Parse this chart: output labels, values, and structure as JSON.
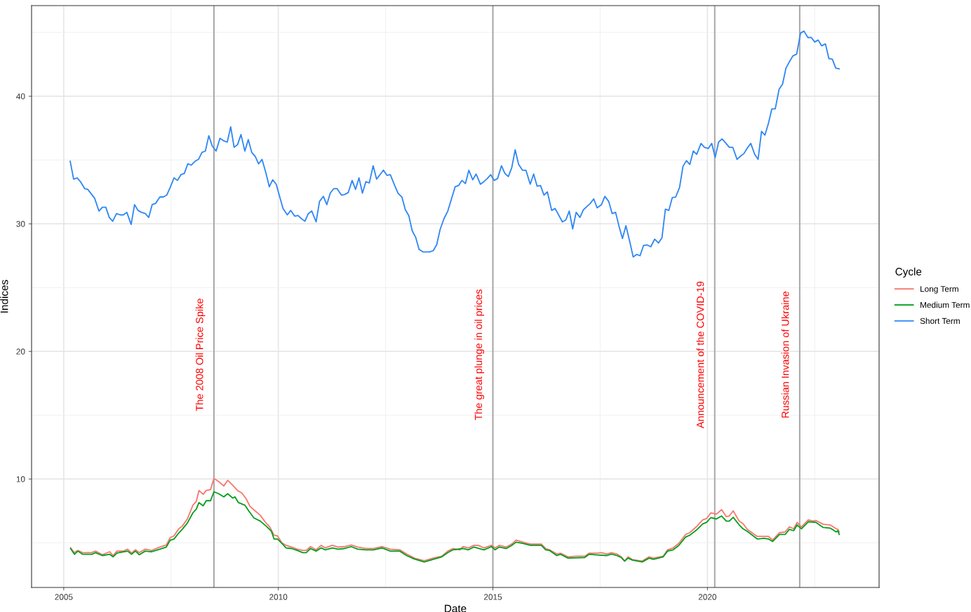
{
  "chart_data": {
    "type": "line",
    "xlabel": "Date",
    "ylabel": "Indices",
    "legend_title": "Cycle",
    "legend": "right",
    "grid": true,
    "xlim": [
      2004.25,
      2024.0
    ],
    "xticks": [
      2005,
      2010,
      2015,
      2020
    ],
    "ylim": [
      1.5,
      47.1
    ],
    "yticks": [
      10,
      20,
      30,
      40
    ],
    "ref_lines": [
      {
        "axis": "x",
        "value": 2008.5,
        "label": "The 2008 Oil Price Spike",
        "color": "#a6a6a6"
      },
      {
        "axis": "x",
        "value": 2015.0,
        "label": "The great plunge in oil prices",
        "color": "#a6a6a6"
      },
      {
        "axis": "x",
        "value": 2020.17,
        "label": "Announcement of the COVID-19",
        "color": "#a6a6a6"
      },
      {
        "axis": "x",
        "value": 2022.15,
        "label": "Russian Invasion of Ukraine",
        "color": "#a6a6a6"
      }
    ],
    "series": [
      {
        "name": "Long Term",
        "color": "#F8766D",
        "x": [
          2005.16,
          2005.24,
          2005.33,
          2005.44,
          2005.64,
          2005.74,
          2005.9,
          2006.07,
          2006.15,
          2006.24,
          2006.39,
          2006.49,
          2006.58,
          2006.67,
          2006.76,
          2006.9,
          2007.04,
          2007.24,
          2007.39,
          2007.48,
          2007.57,
          2007.68,
          2007.76,
          2007.88,
          2008.01,
          2008.09,
          2008.15,
          2008.25,
          2008.32,
          2008.42,
          2008.5,
          2008.61,
          2008.73,
          2008.82,
          2008.94,
          2009.05,
          2009.15,
          2009.25,
          2009.34,
          2009.46,
          2009.58,
          2009.69,
          2009.8,
          2009.9,
          2009.98,
          2010.08,
          2010.18,
          2010.31,
          2010.44,
          2010.57,
          2010.65,
          2010.75,
          2010.88,
          2011.0,
          2011.09,
          2011.26,
          2011.39,
          2011.54,
          2011.7,
          2011.85,
          2012.04,
          2012.22,
          2012.42,
          2012.61,
          2012.83,
          2012.99,
          2013.17,
          2013.4,
          2013.61,
          2013.81,
          2013.95,
          2014.07,
          2014.23,
          2014.3,
          2014.43,
          2014.56,
          2014.66,
          2014.79,
          2014.97,
          2015.05,
          2015.15,
          2015.31,
          2015.44,
          2015.54,
          2015.7,
          2015.87,
          2016.03,
          2016.13,
          2016.23,
          2016.32,
          2016.49,
          2016.58,
          2016.75,
          2016.94,
          2017.14,
          2017.24,
          2017.43,
          2017.53,
          2017.66,
          2017.76,
          2017.89,
          2017.99,
          2018.07,
          2018.15,
          2018.25,
          2018.48,
          2018.64,
          2018.74,
          2018.97,
          2019.07,
          2019.2,
          2019.33,
          2019.49,
          2019.59,
          2019.74,
          2019.89,
          2019.98,
          2020.08,
          2020.21,
          2020.33,
          2020.44,
          2020.51,
          2020.6,
          2020.74,
          2020.83,
          2020.93,
          2021.16,
          2021.32,
          2021.42,
          2021.52,
          2021.68,
          2021.81,
          2021.91,
          2022.01,
          2022.09,
          2022.19,
          2022.35,
          2022.47,
          2022.53,
          2022.7,
          2022.86,
          2023.0,
          2023.04,
          2023.07
        ],
        "values": [
          4.6,
          4.23,
          4.4,
          4.23,
          4.23,
          4.35,
          4.07,
          4.3,
          4.0,
          4.35,
          4.35,
          4.5,
          4.2,
          4.45,
          4.23,
          4.5,
          4.4,
          4.67,
          4.83,
          5.4,
          5.55,
          6.1,
          6.3,
          6.87,
          7.95,
          8.25,
          9.1,
          8.8,
          9.1,
          9.17,
          10.05,
          9.8,
          9.45,
          9.9,
          9.5,
          9.1,
          8.9,
          8.45,
          7.85,
          7.5,
          7.15,
          6.65,
          6.25,
          5.6,
          5.55,
          5.0,
          4.8,
          4.67,
          4.5,
          4.4,
          4.4,
          4.7,
          4.45,
          4.8,
          4.6,
          4.8,
          4.67,
          4.7,
          4.83,
          4.67,
          4.55,
          4.55,
          4.7,
          4.5,
          4.45,
          4.12,
          3.8,
          3.6,
          3.8,
          3.95,
          4.35,
          4.55,
          4.45,
          4.7,
          4.6,
          4.8,
          4.8,
          4.6,
          4.8,
          4.6,
          4.8,
          4.67,
          4.9,
          5.22,
          5.05,
          4.9,
          4.9,
          4.9,
          4.55,
          4.45,
          4.12,
          4.18,
          3.9,
          3.95,
          3.95,
          4.18,
          4.18,
          4.23,
          4.12,
          4.23,
          4.12,
          3.9,
          3.57,
          3.9,
          3.68,
          3.57,
          3.9,
          3.8,
          3.95,
          4.45,
          4.6,
          4.95,
          5.65,
          5.8,
          6.25,
          6.8,
          6.9,
          7.35,
          7.25,
          7.6,
          7.05,
          7.1,
          7.5,
          6.7,
          6.5,
          6.05,
          5.5,
          5.5,
          5.5,
          5.22,
          5.8,
          5.85,
          6.25,
          6.1,
          6.6,
          6.25,
          6.8,
          6.7,
          6.75,
          6.45,
          6.4,
          6.1,
          6.05,
          5.85
        ]
      },
      {
        "name": "Medium Term",
        "color": "#009E1A",
        "x": [
          2005.16,
          2005.25,
          2005.33,
          2005.44,
          2005.66,
          2005.74,
          2005.9,
          2006.07,
          2006.15,
          2006.24,
          2006.49,
          2006.58,
          2006.67,
          2006.76,
          2006.9,
          2007.04,
          2007.24,
          2007.39,
          2007.48,
          2007.57,
          2007.68,
          2007.76,
          2007.88,
          2008.01,
          2008.09,
          2008.15,
          2008.25,
          2008.32,
          2008.42,
          2008.5,
          2008.61,
          2008.73,
          2008.82,
          2008.94,
          2008.99,
          2009.07,
          2009.22,
          2009.31,
          2009.43,
          2009.58,
          2009.72,
          2009.84,
          2009.9,
          2009.98,
          2010.1,
          2010.18,
          2010.31,
          2010.44,
          2010.57,
          2010.65,
          2010.75,
          2010.88,
          2011.0,
          2011.09,
          2011.26,
          2011.39,
          2011.54,
          2011.7,
          2011.85,
          2012.04,
          2012.22,
          2012.42,
          2012.61,
          2012.83,
          2012.99,
          2013.17,
          2013.4,
          2013.61,
          2013.81,
          2013.95,
          2014.07,
          2014.3,
          2014.43,
          2014.56,
          2014.79,
          2014.97,
          2015.05,
          2015.15,
          2015.31,
          2015.44,
          2015.54,
          2015.7,
          2015.87,
          2016.13,
          2016.23,
          2016.32,
          2016.49,
          2016.58,
          2016.75,
          2017.14,
          2017.24,
          2017.43,
          2017.66,
          2017.76,
          2017.89,
          2017.99,
          2018.07,
          2018.15,
          2018.25,
          2018.48,
          2018.64,
          2018.74,
          2018.97,
          2019.07,
          2019.2,
          2019.33,
          2019.49,
          2019.59,
          2019.74,
          2019.89,
          2019.98,
          2020.08,
          2020.21,
          2020.33,
          2020.44,
          2020.51,
          2020.6,
          2020.74,
          2020.83,
          2020.93,
          2021.16,
          2021.32,
          2021.42,
          2021.52,
          2021.68,
          2021.81,
          2021.91,
          2022.01,
          2022.09,
          2022.19,
          2022.35,
          2022.53,
          2022.7,
          2022.86,
          2023.0,
          2023.04,
          2023.07
        ],
        "values": [
          4.55,
          4.1,
          4.35,
          4.1,
          4.1,
          4.23,
          4.0,
          4.1,
          3.9,
          4.2,
          4.35,
          4.1,
          4.35,
          4.07,
          4.35,
          4.3,
          4.5,
          4.67,
          5.2,
          5.3,
          5.77,
          6.05,
          6.55,
          7.35,
          7.65,
          8.15,
          7.9,
          8.3,
          8.3,
          9.0,
          8.85,
          8.6,
          8.85,
          8.5,
          8.6,
          8.15,
          7.95,
          7.5,
          6.95,
          6.7,
          6.3,
          5.9,
          5.3,
          5.3,
          4.9,
          4.6,
          4.55,
          4.4,
          4.23,
          4.23,
          4.55,
          4.35,
          4.6,
          4.45,
          4.6,
          4.5,
          4.55,
          4.7,
          4.5,
          4.45,
          4.45,
          4.6,
          4.35,
          4.35,
          4.0,
          3.73,
          3.5,
          3.7,
          3.9,
          4.23,
          4.45,
          4.55,
          4.45,
          4.67,
          4.45,
          4.7,
          4.45,
          4.67,
          4.55,
          4.8,
          5.05,
          4.95,
          4.8,
          4.8,
          4.45,
          4.4,
          4.0,
          4.1,
          3.8,
          3.85,
          4.1,
          4.05,
          4.0,
          4.12,
          4.0,
          3.85,
          3.57,
          3.8,
          3.65,
          3.5,
          3.8,
          3.7,
          3.9,
          4.35,
          4.45,
          4.78,
          5.45,
          5.6,
          5.99,
          6.48,
          6.6,
          6.98,
          6.87,
          7.1,
          6.7,
          6.7,
          7.0,
          6.4,
          6.1,
          5.9,
          5.3,
          5.35,
          5.3,
          5.1,
          5.65,
          5.65,
          6.05,
          5.95,
          6.4,
          6.1,
          6.65,
          6.6,
          6.2,
          6.15,
          5.85,
          5.95,
          5.65
        ]
      },
      {
        "name": "Short Term",
        "color": "#2E86F5",
        "x": [
          2005.15,
          2005.23,
          2005.31,
          2005.39,
          2005.49,
          2005.56,
          2005.72,
          2005.82,
          2005.9,
          2005.98,
          2006.06,
          2006.14,
          2006.23,
          2006.31,
          2006.39,
          2006.47,
          2006.57,
          2006.65,
          2006.73,
          2006.81,
          2006.9,
          2006.98,
          2007.06,
          2007.14,
          2007.24,
          2007.32,
          2007.4,
          2007.48,
          2007.57,
          2007.65,
          2007.73,
          2007.81,
          2007.89,
          2007.97,
          2008.06,
          2008.14,
          2008.22,
          2008.3,
          2008.38,
          2008.46,
          2008.55,
          2008.64,
          2008.73,
          2008.81,
          2008.89,
          2008.97,
          2009.05,
          2009.13,
          2009.22,
          2009.3,
          2009.38,
          2009.46,
          2009.54,
          2009.62,
          2009.71,
          2009.79,
          2009.87,
          2009.95,
          2010.11,
          2010.21,
          2010.29,
          2010.38,
          2010.46,
          2010.54,
          2010.62,
          2010.7,
          2010.78,
          2010.88,
          2010.96,
          2011.05,
          2011.13,
          2011.21,
          2011.29,
          2011.37,
          2011.47,
          2011.55,
          2011.63,
          2011.72,
          2011.8,
          2011.88,
          2011.96,
          2012.04,
          2012.12,
          2012.21,
          2012.29,
          2012.45,
          2012.53,
          2012.61,
          2012.7,
          2012.79,
          2012.88,
          2012.96,
          2013.04,
          2013.12,
          2013.2,
          2013.28,
          2013.37,
          2013.53,
          2013.61,
          2013.69,
          2013.77,
          2013.86,
          2013.95,
          2014.04,
          2014.12,
          2014.2,
          2014.28,
          2014.36,
          2014.44,
          2014.53,
          2014.61,
          2014.71,
          2014.79,
          2014.87,
          2014.95,
          2015.03,
          2015.11,
          2015.2,
          2015.28,
          2015.36,
          2015.44,
          2015.52,
          2015.6,
          2015.69,
          2015.77,
          2015.87,
          2015.95,
          2016.03,
          2016.11,
          2016.19,
          2016.27,
          2016.37,
          2016.45,
          2016.62,
          2016.7,
          2016.78,
          2016.86,
          2016.94,
          2017.03,
          2017.11,
          2017.19,
          2017.27,
          2017.35,
          2017.43,
          2017.53,
          2017.61,
          2017.7,
          2017.78,
          2017.86,
          2017.94,
          2018.02,
          2018.1,
          2018.19,
          2018.27,
          2018.35,
          2018.43,
          2018.51,
          2018.59,
          2018.68,
          2018.77,
          2018.86,
          2018.94,
          2019.02,
          2019.1,
          2019.18,
          2019.26,
          2019.35,
          2019.43,
          2019.51,
          2019.59,
          2019.67,
          2019.75,
          2019.85,
          2019.93,
          2020.02,
          2020.1,
          2020.18,
          2020.26,
          2020.34,
          2020.42,
          2020.51,
          2020.59,
          2020.69,
          2020.77,
          2020.85,
          2020.93,
          2021.01,
          2021.1,
          2021.18,
          2021.26,
          2021.34,
          2021.42,
          2021.5,
          2021.58,
          2021.67,
          2021.75,
          2021.83,
          2021.91,
          2021.99,
          2022.08,
          2022.17,
          2022.25,
          2022.34,
          2022.42,
          2022.5,
          2022.58,
          2022.66,
          2022.75,
          2022.83,
          2022.91,
          2022.99,
          2023.07
        ],
        "values": [
          34.9,
          33.5,
          33.6,
          33.3,
          32.75,
          32.7,
          32.0,
          31.0,
          31.3,
          31.3,
          30.5,
          30.2,
          30.8,
          30.7,
          30.7,
          30.9,
          29.95,
          31.5,
          31.05,
          30.9,
          30.8,
          30.5,
          31.5,
          31.6,
          32.1,
          32.1,
          32.25,
          32.85,
          33.6,
          33.4,
          33.85,
          33.95,
          34.7,
          34.6,
          34.9,
          35.05,
          35.6,
          35.7,
          36.9,
          36.1,
          35.7,
          36.7,
          36.5,
          36.4,
          37.6,
          36.0,
          36.2,
          37.0,
          35.7,
          36.6,
          35.6,
          35.3,
          34.7,
          35.05,
          34.0,
          32.9,
          33.45,
          33.1,
          31.2,
          30.7,
          31.05,
          30.6,
          30.65,
          30.4,
          30.2,
          30.8,
          31.0,
          30.15,
          31.75,
          32.15,
          31.5,
          32.4,
          32.75,
          32.75,
          32.25,
          32.3,
          32.45,
          33.4,
          32.7,
          33.6,
          32.4,
          33.3,
          33.2,
          34.55,
          33.5,
          34.2,
          33.8,
          33.85,
          33.1,
          32.4,
          32.1,
          31.1,
          30.65,
          29.45,
          28.95,
          28.0,
          27.8,
          27.8,
          27.9,
          28.35,
          29.55,
          30.4,
          31.0,
          32.0,
          32.9,
          33.0,
          33.4,
          33.15,
          34.2,
          33.45,
          33.9,
          33.1,
          33.3,
          33.55,
          33.85,
          33.4,
          33.55,
          34.55,
          33.95,
          33.7,
          34.4,
          35.8,
          34.65,
          34.2,
          34.2,
          33.1,
          33.9,
          32.95,
          33.0,
          32.25,
          32.5,
          31.05,
          31.2,
          30.15,
          30.3,
          31.0,
          29.6,
          30.9,
          30.5,
          31.1,
          31.35,
          31.6,
          31.95,
          31.25,
          31.5,
          32.15,
          31.75,
          30.8,
          30.9,
          29.8,
          28.85,
          29.85,
          28.6,
          27.4,
          27.6,
          27.5,
          28.3,
          28.35,
          28.2,
          28.8,
          28.5,
          28.9,
          31.15,
          31.05,
          32.05,
          32.1,
          32.85,
          34.5,
          34.95,
          34.65,
          35.7,
          35.45,
          36.3,
          36.0,
          35.9,
          36.3,
          35.2,
          36.4,
          36.65,
          36.35,
          36.0,
          36.0,
          35.05,
          35.3,
          35.5,
          35.95,
          36.3,
          35.45,
          35.05,
          37.25,
          36.95,
          37.85,
          39.0,
          39.0,
          40.55,
          40.95,
          42.2,
          42.7,
          43.15,
          43.3,
          44.95,
          45.1,
          44.6,
          44.6,
          44.25,
          44.4,
          43.95,
          44.1,
          42.95,
          42.9,
          42.2,
          42.15
        ]
      }
    ]
  }
}
